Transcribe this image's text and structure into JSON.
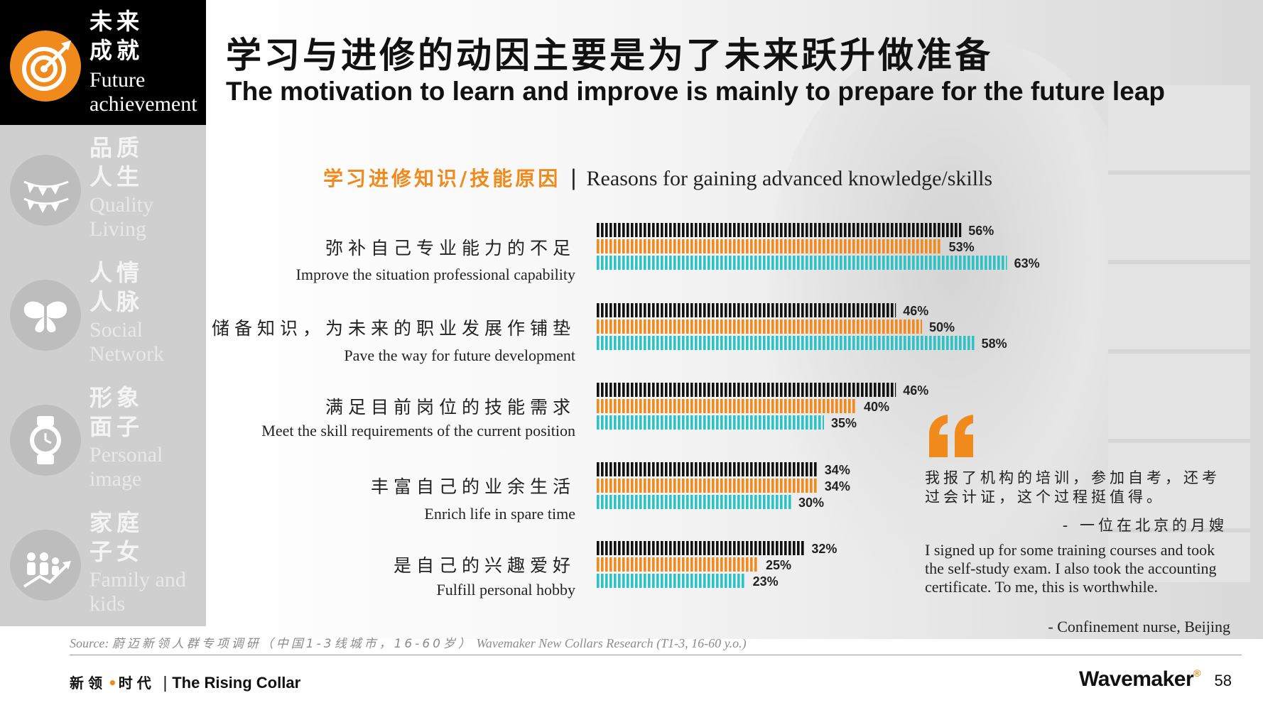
{
  "title": {
    "cn": "学习与进修的动因主要是为了未来跃升做准备",
    "en": "The motivation to learn and improve is mainly to prepare for the future leap"
  },
  "sidebar": {
    "items": [
      {
        "cn": "未来成就",
        "en": "Future achievement",
        "icon": "target-icon",
        "active": true
      },
      {
        "cn": "品质人生",
        "en": "Quality Living",
        "icon": "bunting-icon",
        "active": false
      },
      {
        "cn": "人情人脉",
        "en": "Social Network",
        "icon": "butterfly-icon",
        "active": false
      },
      {
        "cn": "形象面子",
        "en": "Personal image",
        "icon": "watch-icon",
        "active": false
      },
      {
        "cn": "家庭子女",
        "en": "Family and kids",
        "icon": "family-growth-icon",
        "active": false
      }
    ]
  },
  "subtitle": {
    "cn": "学习进修知识/技能原因",
    "sep": "|",
    "en": "Reasons for gaining advanced knowledge/skills"
  },
  "colors": {
    "accent": "#f08a1c",
    "series": [
      "#111111",
      "#f08a1c",
      "#2cc2c6"
    ]
  },
  "chart_data": {
    "type": "bar",
    "orientation": "horizontal",
    "title": "学习进修知识/技能原因 | Reasons for gaining advanced knowledge/skills",
    "categories": [
      {
        "cn": "弥补自己专业能力的不足",
        "en": "Improve the situation professional capability"
      },
      {
        "cn": "储备知识，为未来的职业发展作铺垫",
        "en": "Pave the way for future development"
      },
      {
        "cn": "满足目前岗位的技能需求",
        "en": "Meet the skill requirements of the current position"
      },
      {
        "cn": "丰富自己的业余生活",
        "en": "Enrich life in spare time"
      },
      {
        "cn": "是自己的兴趣爱好",
        "en": "Fulfill personal hobby"
      }
    ],
    "series": [
      {
        "name": "series-1",
        "color": "#111111",
        "values": [
          56,
          46,
          46,
          34,
          32
        ]
      },
      {
        "name": "series-2",
        "color": "#f08a1c",
        "values": [
          53,
          50,
          40,
          34,
          25
        ]
      },
      {
        "name": "series-3",
        "color": "#2cc2c6",
        "values": [
          63,
          58,
          35,
          30,
          23
        ]
      }
    ],
    "unit": "%",
    "xlim": [
      0,
      100
    ],
    "grid": false,
    "legend": "none"
  },
  "quote": {
    "mark": "“",
    "cn": "我报了机构的培训，参加自考，还考过会计证，这个过程挺值得。",
    "cn_author": "- 一位在北京的月嫂",
    "en": "I signed up for some training courses and took the self-study exam. I also took the accounting certificate. To me, this is worthwhile.",
    "en_author": "- Confinement nurse, Beijing"
  },
  "source": {
    "prefix": "Source:",
    "cn": "蔚迈新领人群专项调研（中国1-3线城市，16-60岁）",
    "en": "Wavemaker New Collars Research (T1-3, 16-60 y.o.)"
  },
  "footer": {
    "cn_left": "新领",
    "dot": "•",
    "cn_right": "时代",
    "sep": "|",
    "en": "The Rising Collar",
    "brand": "Wavemaker",
    "brand_mark": "®",
    "page": "58"
  }
}
